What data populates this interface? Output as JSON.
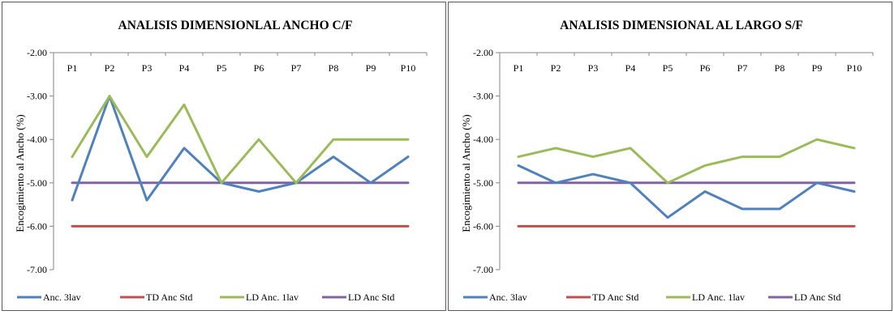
{
  "chart_data": [
    {
      "type": "line",
      "title": "ANALISIS DIMENSIONLAL ANCHO C/F",
      "xlabel": "",
      "ylabel": "Encogimiento al Ancho (%)",
      "ylim": [
        -7.0,
        -2.0
      ],
      "y_ticks": [
        "-2.00",
        "-3.00",
        "-4.00",
        "-5.00",
        "-6.00",
        "-7.00"
      ],
      "x_axis_position": "top",
      "grid": false,
      "legend_position": "bottom",
      "categories": [
        "P1",
        "P2",
        "P3",
        "P4",
        "P5",
        "P6",
        "P7",
        "P8",
        "P9",
        "P10"
      ],
      "series": [
        {
          "name": "Anc. 3lav",
          "color": "#4f81bd",
          "values": [
            -5.4,
            -3.0,
            -5.4,
            -4.2,
            -5.0,
            -5.2,
            -5.0,
            -4.4,
            -5.0,
            -4.4
          ]
        },
        {
          "name": "TD Anc Std",
          "color": "#c0504d",
          "values": [
            -6.0,
            -6.0,
            -6.0,
            -6.0,
            -6.0,
            -6.0,
            -6.0,
            -6.0,
            -6.0,
            -6.0
          ]
        },
        {
          "name": "LD Anc. 1lav",
          "color": "#9bbb59",
          "values": [
            -4.4,
            -3.0,
            -4.4,
            -3.2,
            -5.0,
            -4.0,
            -5.0,
            -4.0,
            -4.0,
            -4.0
          ]
        },
        {
          "name": "LD Anc Std",
          "color": "#8064a2",
          "values": [
            -5.0,
            -5.0,
            -5.0,
            -5.0,
            -5.0,
            -5.0,
            -5.0,
            -5.0,
            -5.0,
            -5.0
          ]
        }
      ]
    },
    {
      "type": "line",
      "title": "ANALISIS DIMENSIONAL AL LARGO S/F",
      "xlabel": "",
      "ylabel": "Encogimiento al Ancho (%)",
      "ylim": [
        -7.0,
        -2.0
      ],
      "y_ticks": [
        "-2.00",
        "-3.00",
        "-4.00",
        "-5.00",
        "-6.00",
        "-7.00"
      ],
      "x_axis_position": "top",
      "grid": false,
      "legend_position": "bottom",
      "categories": [
        "P1",
        "P2",
        "P3",
        "P4",
        "P5",
        "P6",
        "P7",
        "P8",
        "P9",
        "P10"
      ],
      "series": [
        {
          "name": "Anc. 3lav",
          "color": "#4f81bd",
          "values": [
            -4.6,
            -5.0,
            -4.8,
            -5.0,
            -5.8,
            -5.2,
            -5.6,
            -5.6,
            -5.0,
            -5.2
          ]
        },
        {
          "name": "TD Anc Std",
          "color": "#c0504d",
          "values": [
            -6.0,
            -6.0,
            -6.0,
            -6.0,
            -6.0,
            -6.0,
            -6.0,
            -6.0,
            -6.0,
            -6.0
          ]
        },
        {
          "name": "LD Anc. 1lav",
          "color": "#9bbb59",
          "values": [
            -4.4,
            -4.2,
            -4.4,
            -4.2,
            -5.0,
            -4.6,
            -4.4,
            -4.4,
            -4.0,
            -4.2
          ]
        },
        {
          "name": "LD Anc Std",
          "color": "#8064a2",
          "values": [
            -5.0,
            -5.0,
            -5.0,
            -5.0,
            -5.0,
            -5.0,
            -5.0,
            -5.0,
            -5.0,
            -5.0
          ]
        }
      ]
    }
  ]
}
